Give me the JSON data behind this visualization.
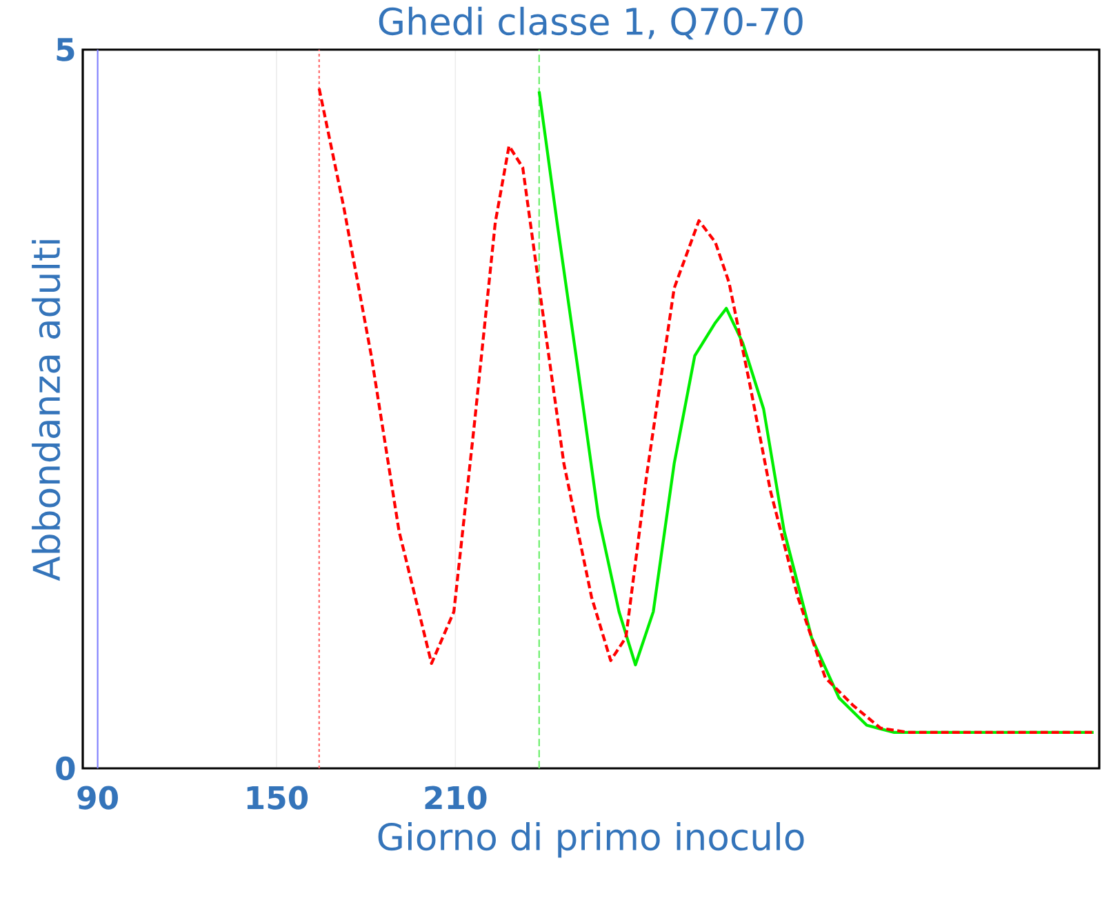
{
  "chart_data": {
    "type": "line",
    "title": "Ghedi classe 1, Q70-70",
    "xlabel": "Giorno di primo inoculo",
    "ylabel": "Abbondanza adulti",
    "xlim": [
      85,
      426
    ],
    "ylim": [
      0,
      5
    ],
    "xticks": [
      90,
      150,
      210
    ],
    "yticks": [
      0,
      5
    ],
    "grid": true,
    "marker": "none",
    "series": [
      {
        "color": "#ff0000",
        "line_style": "dashed",
        "x": [
          164.3,
          172.6,
          181.8,
          191.1,
          202.0,
          209.5,
          216.4,
          223.4,
          228.0,
          232.6,
          237.7,
          246.4,
          255.7,
          262.1,
          267.2,
          274.1,
          283.4,
          291.7,
          297.2,
          301.8,
          308.7,
          315.7,
          324.9,
          334.1,
          343.3,
          352.6,
          361.8,
          424.1
        ],
        "values": [
          4.73,
          3.9,
          2.87,
          1.65,
          0.73,
          1.09,
          2.4,
          3.8,
          4.33,
          4.18,
          3.41,
          2.12,
          1.19,
          0.75,
          0.91,
          2.03,
          3.34,
          3.81,
          3.66,
          3.38,
          2.68,
          1.93,
          1.19,
          0.63,
          0.44,
          0.28,
          0.25,
          0.25
        ]
      },
      {
        "color": "#00ee00",
        "line_style": "solid",
        "x": [
          238.1,
          244.1,
          251.1,
          258.0,
          264.9,
          270.4,
          276.4,
          283.4,
          290.3,
          297.2,
          300.9,
          306.4,
          313.4,
          320.3,
          329.5,
          338.7,
          348.0,
          357.2,
          424.1
        ],
        "values": [
          4.71,
          3.8,
          2.78,
          1.75,
          1.09,
          0.72,
          1.09,
          2.12,
          2.87,
          3.1,
          3.2,
          2.96,
          2.5,
          1.65,
          0.91,
          0.49,
          0.3,
          0.25,
          0.25
        ]
      }
    ],
    "ref_lines": [
      {
        "axis": "x",
        "value": 90,
        "color": "#8080ff",
        "line_style": "solid"
      },
      {
        "axis": "x",
        "value": 164.3,
        "color": "#ff6666",
        "line_style": "dotted"
      },
      {
        "axis": "x",
        "value": 238.1,
        "color": "#66ee66",
        "line_style": "dashed"
      }
    ]
  }
}
